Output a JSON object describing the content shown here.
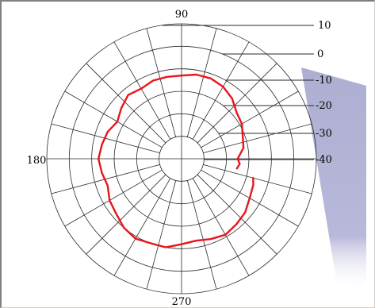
{
  "chart_data": {
    "type": "polar-line",
    "angle_labels": [
      {
        "angle": 90,
        "text": "90"
      },
      {
        "angle": 180,
        "text": "180"
      },
      {
        "angle": 270,
        "text": "270"
      }
    ],
    "radial_range": [
      -50,
      10
    ],
    "radial_ticks": [
      10,
      0,
      -10,
      -20,
      -30,
      -40
    ],
    "radial_tick_labels": [
      "10",
      "0",
      "-10",
      "-20",
      "-30",
      "-40"
    ],
    "angular_grid_step_deg": 15,
    "grid": true,
    "series": [
      {
        "color": "#e8151b",
        "theta": [
          -10,
          -5,
          0,
          10,
          20,
          30,
          40,
          50,
          60,
          70,
          80,
          90,
          100,
          110,
          120,
          130,
          140,
          150,
          160,
          170,
          180,
          190,
          200,
          210,
          220,
          230,
          240,
          250,
          260,
          270,
          280,
          290,
          300,
          310,
          320,
          330,
          340,
          345
        ],
        "r": [
          -25,
          -24,
          -25,
          -22,
          -21,
          -19,
          -18,
          -15,
          -13,
          -12,
          -12,
          -13,
          -13,
          -13,
          -14,
          -13,
          -15,
          -17,
          -15,
          -14,
          -13,
          -14,
          -15,
          -13,
          -12,
          -10,
          -9,
          -10,
          -10,
          -12,
          -13,
          -12,
          -11,
          -12,
          -13,
          -15,
          -16,
          -17
        ]
      }
    ]
  },
  "decor": {
    "panel_color": "#b2b2d4"
  }
}
